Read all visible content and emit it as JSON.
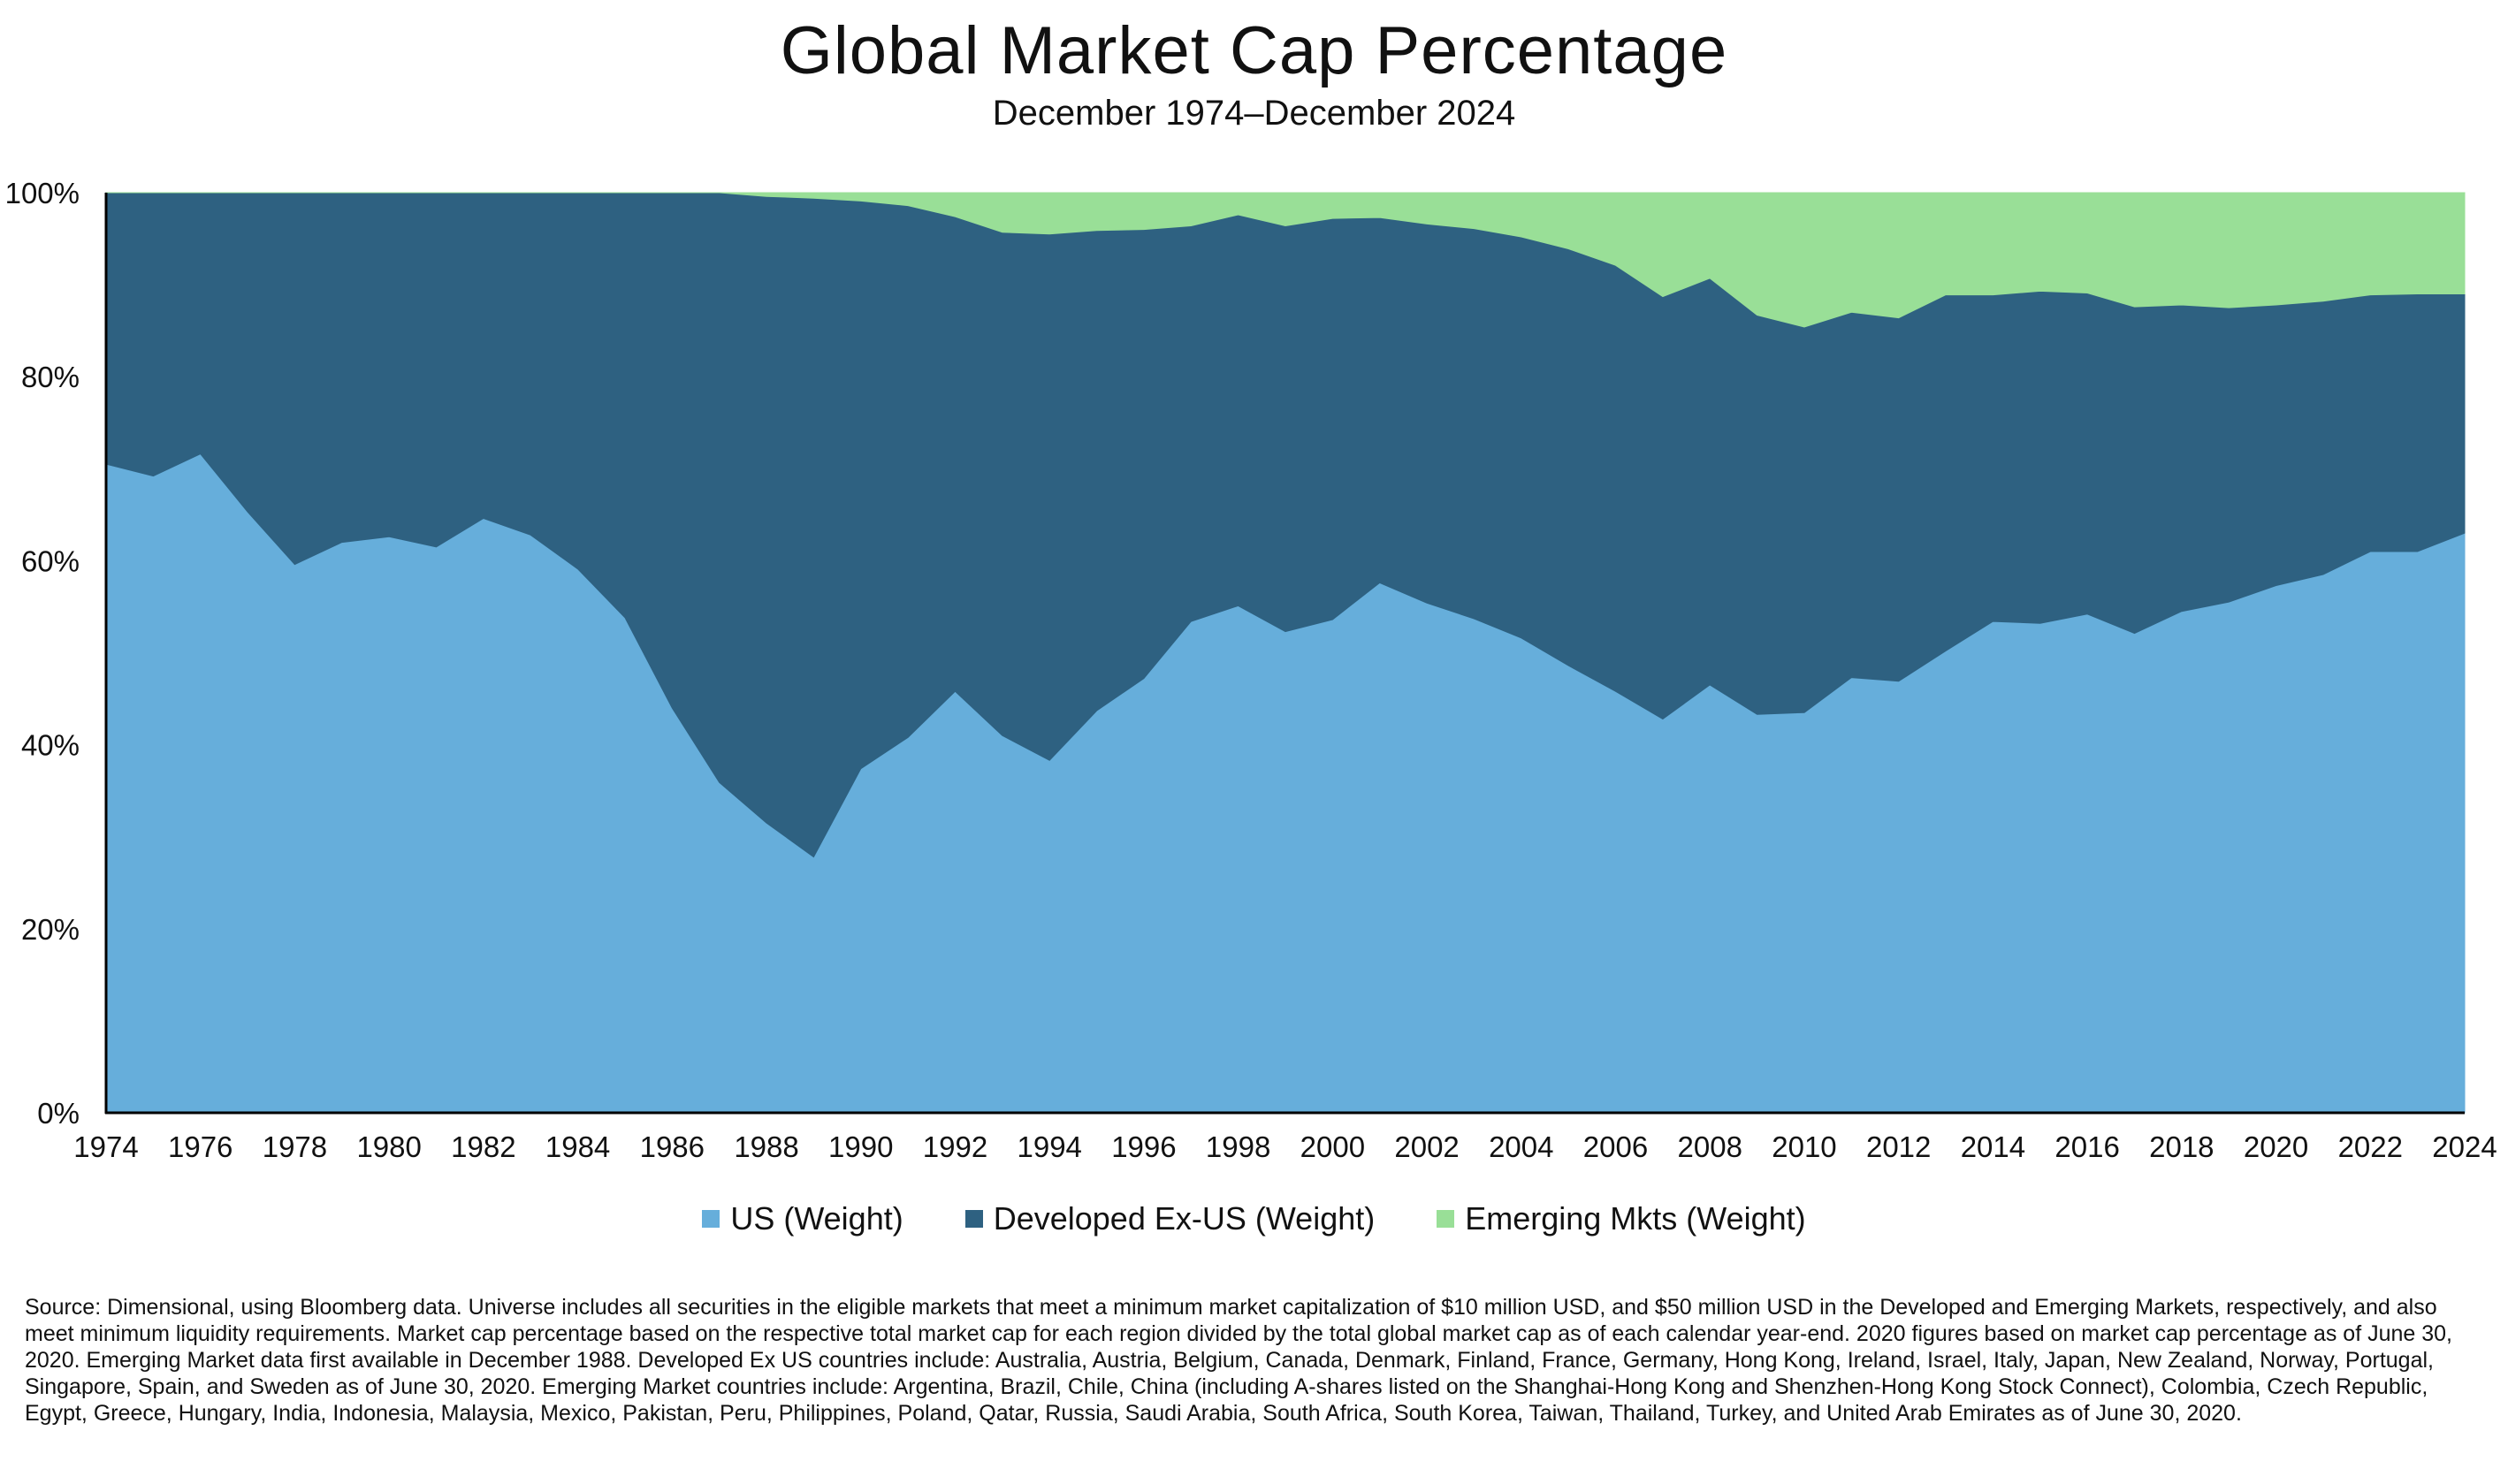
{
  "chart_data": {
    "type": "area",
    "stacked": true,
    "title": "Global Market Cap Percentage",
    "subtitle": "December 1974–December 2024",
    "ylim": [
      0,
      100
    ],
    "y_ticks": [
      "0%",
      "20%",
      "40%",
      "60%",
      "80%",
      "100%"
    ],
    "y_tick_values": [
      0,
      20,
      40,
      60,
      80,
      100
    ],
    "x_tick_labels": [
      "1974",
      "1976",
      "1978",
      "1980",
      "1982",
      "1984",
      "1986",
      "1988",
      "1990",
      "1992",
      "1994",
      "1996",
      "1998",
      "2000",
      "2002",
      "2004",
      "2006",
      "2008",
      "2010",
      "2012",
      "2014",
      "2016",
      "2018",
      "2020",
      "2022",
      "2024"
    ],
    "x": [
      1974,
      1975,
      1976,
      1977,
      1978,
      1979,
      1980,
      1981,
      1982,
      1983,
      1984,
      1985,
      1986,
      1987,
      1988,
      1989,
      1990,
      1991,
      1992,
      1993,
      1994,
      1995,
      1996,
      1997,
      1998,
      1999,
      2000,
      2001,
      2002,
      2003,
      2004,
      2005,
      2006,
      2007,
      2008,
      2009,
      2010,
      2011,
      2012,
      2013,
      2014,
      2015,
      2016,
      2017,
      2018,
      2019,
      2020,
      2021,
      2022,
      2023,
      2024
    ],
    "series": [
      {
        "name": "US (Weight)",
        "color": "#66aedb",
        "values": [
          70.5,
          69.2,
          71.6,
          65.3,
          59.6,
          62.0,
          62.6,
          61.5,
          64.6,
          62.8,
          59.1,
          53.8,
          44.0,
          35.9,
          31.5,
          27.8,
          37.4,
          40.8,
          45.8,
          41.0,
          38.3,
          43.7,
          47.2,
          53.4,
          55.1,
          52.3,
          53.6,
          57.6,
          55.4,
          53.7,
          51.6,
          48.6,
          45.8,
          42.8,
          46.5,
          43.3,
          43.5,
          47.3,
          46.9,
          50.2,
          53.4,
          53.2,
          54.2,
          52.1,
          54.5,
          55.5,
          57.3,
          58.5,
          61.0,
          61.0,
          63.0
        ]
      },
      {
        "name": "Developed Ex-US (Weight)",
        "color": "#2e6181",
        "values": [
          29.5,
          30.8,
          28.4,
          34.7,
          40.4,
          38.0,
          37.4,
          38.5,
          35.4,
          37.2,
          40.9,
          46.2,
          56.0,
          64.1,
          68.1,
          71.6,
          61.7,
          57.8,
          51.6,
          54.7,
          57.2,
          52.2,
          48.8,
          43.0,
          42.5,
          44.1,
          43.6,
          39.7,
          41.2,
          42.4,
          43.6,
          45.3,
          46.3,
          45.9,
          44.2,
          43.4,
          41.9,
          39.7,
          39.5,
          38.7,
          35.5,
          36.1,
          34.9,
          35.5,
          33.3,
          32.0,
          30.5,
          29.7,
          27.9,
          28.0,
          26.0
        ]
      },
      {
        "name": "Emerging Mkts (Weight)",
        "color": "#99df97",
        "values": [
          0,
          0,
          0,
          0,
          0,
          0,
          0,
          0,
          0,
          0,
          0,
          0,
          0,
          0,
          0.4,
          0.6,
          0.9,
          1.4,
          2.6,
          4.3,
          4.5,
          4.1,
          4.0,
          3.6,
          2.4,
          3.6,
          2.8,
          2.7,
          3.4,
          3.9,
          4.8,
          6.1,
          7.9,
          11.3,
          9.3,
          13.3,
          14.6,
          13.0,
          13.6,
          11.1,
          11.1,
          10.7,
          10.9,
          12.4,
          12.2,
          12.5,
          12.2,
          11.8,
          11.1,
          11.0,
          11.0
        ]
      }
    ],
    "legend_position": "bottom-center",
    "grid": false
  },
  "source_note": "Source: Dimensional, using Bloomberg data. Universe includes all securities in the eligible markets that meet a minimum market capitalization of $10 million USD, and $50 million USD in the Developed and Emerging Markets, respectively, and also meet minimum liquidity requirements. Market cap percentage based on the respective total market cap for each region divided by the total global market cap as of each calendar year-end. 2020 figures based on market cap percentage as of June 30, 2020. Emerging Market data first available in December 1988. Developed Ex US countries include: Australia, Austria, Belgium, Canada, Denmark, Finland, France, Germany, Hong Kong, Ireland, Israel, Italy, Japan, New Zealand, Norway, Portugal, Singapore, Spain, and Sweden as of June 30, 2020. Emerging Market countries include: Argentina, Brazil, Chile, China (including A-shares listed on the Shanghai-Hong Kong and Shenzhen-Hong Kong Stock Connect), Colombia, Czech Republic, Egypt, Greece, Hungary, India, Indonesia, Malaysia, Mexico, Pakistan, Peru, Philippines, Poland, Qatar, Russia, Saudi Arabia, South Africa, South Korea, Taiwan, Thailand, Turkey, and United Arab Emirates as of June 30, 2020."
}
